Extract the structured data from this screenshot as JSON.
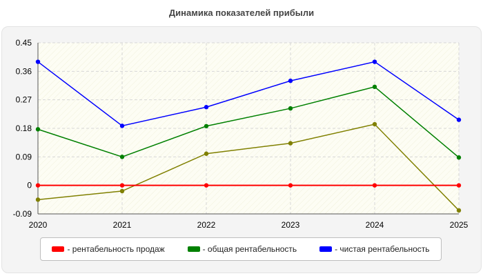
{
  "chart_data": {
    "type": "line",
    "title": "Динамика показателей прибыли",
    "x": [
      "2020",
      "2021",
      "2022",
      "2023",
      "2024",
      "2025"
    ],
    "ylim": [
      -0.09,
      0.45
    ],
    "yticks": [
      "0.45",
      "0.36",
      "0.27",
      "0.18",
      "0.09",
      "0",
      "-0.09"
    ],
    "ytick_values": [
      0.45,
      0.36,
      0.27,
      0.18,
      0.09,
      0,
      -0.09
    ],
    "grid": true,
    "legend_position": "bottom",
    "series": [
      {
        "name": "- рентабельность продаж",
        "color": "#ff0000",
        "values": [
          0,
          0,
          0,
          0,
          0,
          0
        ]
      },
      {
        "name": "- общая рентабельность",
        "color": "#008000",
        "values": [
          0.177,
          0.09,
          0.187,
          0.243,
          0.311,
          0.088
        ]
      },
      {
        "name": "- чистая рентабельность",
        "color": "#0000ff",
        "values": [
          0.39,
          0.188,
          0.247,
          0.33,
          0.39,
          0.207
        ]
      },
      {
        "color": "#808000",
        "values": [
          -0.045,
          -0.018,
          0.1,
          0.133,
          0.193,
          -0.079
        ]
      }
    ]
  }
}
